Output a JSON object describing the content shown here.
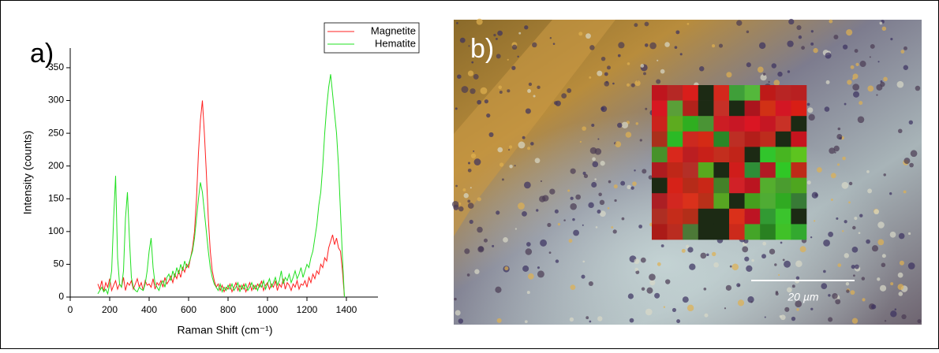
{
  "chart_data": {
    "type": "line",
    "panel_label": "a)",
    "x_label": "Raman Shift (cm⁻¹)",
    "y_label": "Intensity (counts)",
    "xlim": [
      0,
      1560
    ],
    "ylim": [
      0,
      380
    ],
    "xticks": [
      0,
      200,
      400,
      600,
      800,
      1000,
      1200,
      1400
    ],
    "yticks": [
      0,
      50,
      100,
      150,
      200,
      250,
      300,
      350
    ],
    "legend": "upper right",
    "x": [
      140,
      150,
      160,
      170,
      180,
      190,
      200,
      210,
      220,
      230,
      240,
      250,
      260,
      270,
      280,
      290,
      300,
      310,
      320,
      330,
      340,
      350,
      360,
      370,
      380,
      390,
      400,
      410,
      420,
      430,
      440,
      450,
      460,
      470,
      480,
      490,
      500,
      510,
      520,
      530,
      540,
      550,
      560,
      570,
      580,
      590,
      600,
      610,
      620,
      630,
      640,
      650,
      660,
      670,
      680,
      690,
      700,
      710,
      720,
      730,
      740,
      750,
      760,
      770,
      780,
      790,
      800,
      810,
      820,
      830,
      840,
      850,
      860,
      870,
      880,
      890,
      900,
      910,
      920,
      930,
      940,
      950,
      960,
      970,
      980,
      990,
      1000,
      1010,
      1020,
      1030,
      1040,
      1050,
      1060,
      1070,
      1080,
      1090,
      1100,
      1110,
      1120,
      1130,
      1140,
      1150,
      1160,
      1170,
      1180,
      1190,
      1200,
      1210,
      1220,
      1230,
      1240,
      1250,
      1260,
      1270,
      1280,
      1290,
      1300,
      1310,
      1320,
      1330,
      1340,
      1350,
      1360,
      1370,
      1380,
      1390
    ],
    "series": [
      {
        "name": "Magnetite",
        "color": "#ff2020",
        "values": [
          20,
          12,
          25,
          8,
          22,
          15,
          28,
          10,
          18,
          25,
          12,
          20,
          15,
          30,
          10,
          22,
          18,
          25,
          12,
          20,
          28,
          15,
          22,
          10,
          25,
          18,
          20,
          15,
          28,
          12,
          22,
          18,
          25,
          15,
          30,
          20,
          25,
          32,
          22,
          35,
          28,
          40,
          30,
          45,
          38,
          50,
          45,
          60,
          75,
          100,
          150,
          220,
          270,
          300,
          250,
          190,
          120,
          70,
          40,
          25,
          15,
          20,
          10,
          18,
          8,
          15,
          12,
          20,
          8,
          15,
          22,
          10,
          18,
          12,
          20,
          8,
          15,
          22,
          10,
          18,
          12,
          20,
          15,
          25,
          10,
          18,
          22,
          12,
          20,
          15,
          25,
          10,
          20,
          15,
          28,
          12,
          22,
          18,
          10,
          20,
          15,
          25,
          12,
          20,
          18,
          25,
          15,
          30,
          22,
          35,
          28,
          40,
          35,
          50,
          45,
          60,
          55,
          75,
          85,
          95,
          80,
          90,
          75,
          70,
          40,
          0
        ]
      },
      {
        "name": "Hematite",
        "color": "#20e020",
        "values": [
          5,
          10,
          15,
          8,
          12,
          5,
          20,
          40,
          120,
          185,
          60,
          20,
          15,
          40,
          120,
          160,
          90,
          30,
          15,
          10,
          8,
          15,
          12,
          10,
          20,
          40,
          70,
          90,
          45,
          20,
          15,
          10,
          20,
          25,
          15,
          30,
          35,
          25,
          40,
          30,
          45,
          35,
          50,
          40,
          55,
          45,
          50,
          60,
          70,
          90,
          120,
          150,
          175,
          160,
          130,
          100,
          70,
          45,
          30,
          20,
          15,
          10,
          20,
          8,
          15,
          10,
          18,
          12,
          20,
          10,
          15,
          22,
          8,
          18,
          12,
          20,
          10,
          15,
          22,
          12,
          18,
          10,
          20,
          15,
          25,
          12,
          20,
          28,
          15,
          22,
          30,
          18,
          25,
          40,
          20,
          30,
          25,
          35,
          22,
          30,
          40,
          28,
          35,
          45,
          30,
          40,
          50,
          45,
          60,
          70,
          90,
          110,
          140,
          160,
          200,
          250,
          290,
          320,
          340,
          310,
          280,
          250,
          200,
          130,
          60,
          0
        ]
      }
    ]
  },
  "image": {
    "panel_label": "b)",
    "scale_bar": "20 µm"
  }
}
